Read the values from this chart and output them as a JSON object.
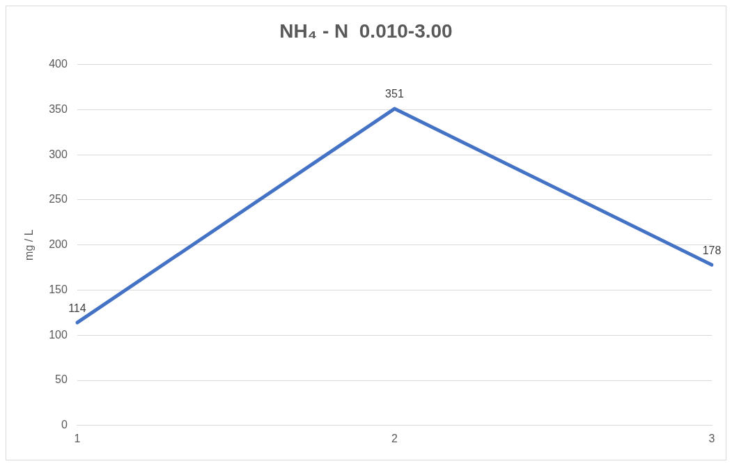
{
  "chart_data": {
    "type": "line",
    "title": "NH₄ - N  0.010-3.00",
    "ylabel": "mg / L",
    "categories": [
      "1",
      "2",
      "3"
    ],
    "series": [
      {
        "color": "#4472c4",
        "values": [
          114,
          351,
          178
        ]
      }
    ],
    "ylim": [
      0,
      400
    ],
    "yticks": [
      0,
      50,
      100,
      150,
      200,
      250,
      300,
      350,
      400
    ],
    "grid": "y",
    "data_labels": true,
    "marker": "none",
    "legend": false
  }
}
